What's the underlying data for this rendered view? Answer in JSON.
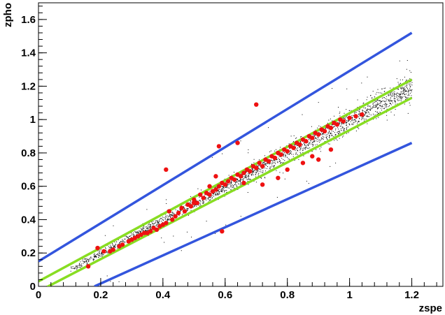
{
  "chart_data": {
    "type": "scatter",
    "title": "",
    "xlabel": "zspe",
    "ylabel": "zpho",
    "xlim": [
      0,
      1.3
    ],
    "ylim": [
      0,
      1.7
    ],
    "grid": false,
    "legend": "none",
    "x_ticks": [
      "0",
      "0.2",
      "0.4",
      "0.6",
      "0.8",
      "1",
      "1.2"
    ],
    "y_ticks": [
      "0",
      "0.2",
      "0.4",
      "0.6",
      "0.8",
      "1",
      "1.2",
      "1.4",
      "1.6"
    ],
    "background_cloud": {
      "color": "#000000",
      "relation": "zpho ≈ zspe",
      "x_range": [
        0.1,
        1.2
      ],
      "approx_count": 6000
    },
    "highlighted_points": {
      "color": "#ee1111",
      "points": [
        [
          0.16,
          0.12
        ],
        [
          0.19,
          0.23
        ],
        [
          0.21,
          0.21
        ],
        [
          0.23,
          0.21
        ],
        [
          0.24,
          0.22
        ],
        [
          0.26,
          0.24
        ],
        [
          0.27,
          0.25
        ],
        [
          0.29,
          0.27
        ],
        [
          0.3,
          0.28
        ],
        [
          0.31,
          0.29
        ],
        [
          0.32,
          0.3
        ],
        [
          0.33,
          0.31
        ],
        [
          0.34,
          0.32
        ],
        [
          0.35,
          0.32
        ],
        [
          0.36,
          0.33
        ],
        [
          0.37,
          0.35
        ],
        [
          0.38,
          0.34
        ],
        [
          0.39,
          0.36
        ],
        [
          0.4,
          0.37
        ],
        [
          0.41,
          0.38
        ],
        [
          0.41,
          0.7
        ],
        [
          0.42,
          0.45
        ],
        [
          0.43,
          0.4
        ],
        [
          0.44,
          0.42
        ],
        [
          0.45,
          0.44
        ],
        [
          0.46,
          0.47
        ],
        [
          0.47,
          0.45
        ],
        [
          0.48,
          0.49
        ],
        [
          0.49,
          0.48
        ],
        [
          0.5,
          0.5
        ],
        [
          0.5,
          0.52
        ],
        [
          0.51,
          0.5
        ],
        [
          0.52,
          0.55
        ],
        [
          0.53,
          0.53
        ],
        [
          0.54,
          0.56
        ],
        [
          0.55,
          0.55
        ],
        [
          0.55,
          0.6
        ],
        [
          0.56,
          0.57
        ],
        [
          0.57,
          0.58
        ],
        [
          0.57,
          0.66
        ],
        [
          0.58,
          0.6
        ],
        [
          0.58,
          0.84
        ],
        [
          0.59,
          0.33
        ],
        [
          0.59,
          0.62
        ],
        [
          0.6,
          0.61
        ],
        [
          0.61,
          0.63
        ],
        [
          0.62,
          0.65
        ],
        [
          0.63,
          0.64
        ],
        [
          0.64,
          0.67
        ],
        [
          0.64,
          0.86
        ],
        [
          0.65,
          0.66
        ],
        [
          0.66,
          0.68
        ],
        [
          0.66,
          0.62
        ],
        [
          0.67,
          0.7
        ],
        [
          0.68,
          0.69
        ],
        [
          0.69,
          0.72
        ],
        [
          0.7,
          1.09
        ],
        [
          0.7,
          0.71
        ],
        [
          0.71,
          0.74
        ],
        [
          0.72,
          0.72
        ],
        [
          0.73,
          0.76
        ],
        [
          0.74,
          0.75
        ],
        [
          0.75,
          0.78
        ],
        [
          0.76,
          0.77
        ],
        [
          0.77,
          0.8
        ],
        [
          0.78,
          0.79
        ],
        [
          0.79,
          0.82
        ],
        [
          0.8,
          0.81
        ],
        [
          0.81,
          0.84
        ],
        [
          0.82,
          0.83
        ],
        [
          0.83,
          0.86
        ],
        [
          0.84,
          0.85
        ],
        [
          0.85,
          0.88
        ],
        [
          0.86,
          0.87
        ],
        [
          0.87,
          0.9
        ],
        [
          0.88,
          0.89
        ],
        [
          0.89,
          0.92
        ],
        [
          0.9,
          0.91
        ],
        [
          0.91,
          0.94
        ],
        [
          0.92,
          0.93
        ],
        [
          0.93,
          0.96
        ],
        [
          0.94,
          0.95
        ],
        [
          0.95,
          0.98
        ],
        [
          0.96,
          0.97
        ],
        [
          0.97,
          1.0
        ],
        [
          0.98,
          0.99
        ],
        [
          1.0,
          1.01
        ],
        [
          1.02,
          1.02
        ],
        [
          1.04,
          1.03
        ],
        [
          0.88,
          0.78
        ],
        [
          0.85,
          0.74
        ],
        [
          0.9,
          0.76
        ],
        [
          0.94,
          0.82
        ],
        [
          0.8,
          0.7
        ],
        [
          0.77,
          0.65
        ],
        [
          0.72,
          0.61
        ]
      ]
    },
    "lines": [
      {
        "name": "",
        "color": "#3355dd",
        "x": [
          0.0,
          1.2
        ],
        "y": [
          0.15,
          1.52
        ]
      },
      {
        "name": "",
        "color": "#3355dd",
        "x": [
          0.18,
          1.2
        ],
        "y": [
          0.0,
          0.86
        ]
      },
      {
        "name": "",
        "color": "#88dd22",
        "x": [
          0.0,
          1.2
        ],
        "y": [
          0.03,
          1.24
        ]
      },
      {
        "name": "",
        "color": "#88dd22",
        "x": [
          0.0,
          1.2
        ],
        "y": [
          -0.03,
          1.13
        ]
      }
    ]
  }
}
